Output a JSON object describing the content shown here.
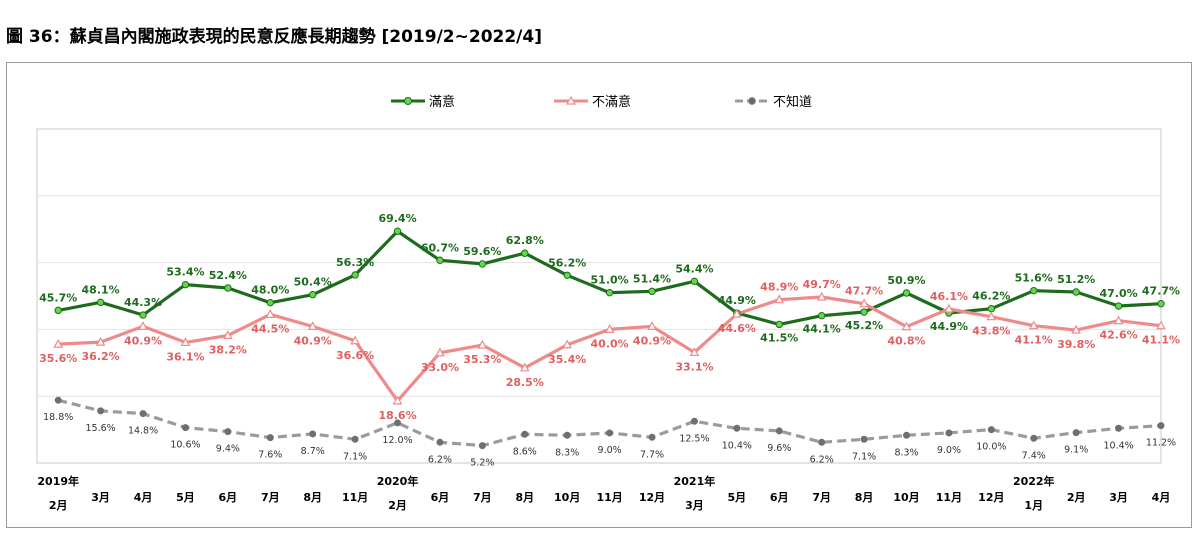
{
  "title": "圖 36：蘇貞昌內閣施政表現的民意反應長期趨勢 [2019/2~2022/4]",
  "colors": {
    "satisfied": "#1e6b1e",
    "satisfied_marker": "#62d84a",
    "dissatisfied": "#ee8a8a",
    "unknown": "#9b9b9b"
  },
  "chart_data": {
    "type": "line",
    "title": "圖 36：蘇貞昌內閣施政表現的民意反應長期趨勢 [2019/2~2022/4]",
    "xlabel": "",
    "ylabel": "",
    "ylim": [
      0,
      100
    ],
    "grid": true,
    "legend": "top",
    "categories": [
      "2019年 2月",
      "3月",
      "4月",
      "5月",
      "6月",
      "7月",
      "8月",
      "11月",
      "2020年 2月",
      "6月",
      "7月",
      "8月",
      "10月",
      "11月",
      "12月",
      "2021年 3月",
      "5月",
      "6月",
      "7月",
      "8月",
      "10月",
      "11月",
      "12月",
      "2022年 1月",
      "2月",
      "3月",
      "4月"
    ],
    "tick_labels": [
      [
        "2019年",
        "2月"
      ],
      [
        "3月"
      ],
      [
        "4月"
      ],
      [
        "5月"
      ],
      [
        "6月"
      ],
      [
        "7月"
      ],
      [
        "8月"
      ],
      [
        "11月"
      ],
      [
        "2020年",
        "2月"
      ],
      [
        "6月"
      ],
      [
        "7月"
      ],
      [
        "8月"
      ],
      [
        "10月"
      ],
      [
        "11月"
      ],
      [
        "12月"
      ],
      [
        "2021年",
        "3月"
      ],
      [
        "5月"
      ],
      [
        "6月"
      ],
      [
        "7月"
      ],
      [
        "8月"
      ],
      [
        "10月"
      ],
      [
        "11月"
      ],
      [
        "12月"
      ],
      [
        "2022年",
        "1月"
      ],
      [
        "2月"
      ],
      [
        "3月"
      ],
      [
        "4月"
      ]
    ],
    "series": [
      {
        "name": "滿意",
        "values": [
          45.7,
          48.1,
          44.3,
          53.4,
          52.4,
          48.0,
          50.4,
          56.3,
          69.4,
          60.7,
          59.6,
          62.8,
          56.2,
          51.0,
          51.4,
          54.4,
          44.9,
          41.5,
          44.1,
          45.2,
          50.9,
          44.9,
          46.2,
          51.6,
          51.2,
          47.0,
          47.7
        ]
      },
      {
        "name": "不滿意",
        "values": [
          35.6,
          36.2,
          40.9,
          36.1,
          38.2,
          44.5,
          40.9,
          36.6,
          18.6,
          33.0,
          35.3,
          28.5,
          35.4,
          40.0,
          40.9,
          33.1,
          44.6,
          48.9,
          49.7,
          47.7,
          40.8,
          46.1,
          43.8,
          41.1,
          39.8,
          42.6,
          41.1
        ]
      },
      {
        "name": "不知道",
        "values": [
          18.8,
          15.6,
          14.8,
          10.6,
          9.4,
          7.6,
          8.7,
          7.1,
          12.0,
          6.2,
          5.2,
          8.6,
          8.3,
          9.0,
          7.7,
          12.5,
          10.4,
          9.6,
          6.2,
          7.1,
          8.3,
          9.0,
          10.0,
          7.4,
          9.1,
          10.4,
          11.2
        ]
      }
    ],
    "data_labels": [
      [
        "45.7%",
        "48.1%",
        "44.3%",
        "53.4%",
        "52.4%",
        "48.0%",
        "50.4%",
        "56.3%",
        "69.4%",
        "60.7%",
        "59.6%",
        "62.8%",
        "56.2%",
        "51.0%",
        "51.4%",
        "54.4%",
        "44.9%",
        "41.5%",
        "44.1%",
        "45.2%",
        "50.9%",
        "44.9%",
        "46.2%",
        "51.6%",
        "51.2%",
        "47.0%",
        "47.7%"
      ],
      [
        "35.6%",
        "36.2%",
        "40.9%",
        "36.1%",
        "38.2%",
        "44.5%",
        "40.9%",
        "36.6%",
        "18.6%",
        "33.0%",
        "35.3%",
        "28.5%",
        "35.4%",
        "40.0%",
        "40.9%",
        "33.1%",
        "44.6%",
        "48.9%",
        "49.7%",
        "47.7%",
        "40.8%",
        "46.1%",
        "43.8%",
        "41.1%",
        "39.8%",
        "42.6%",
        "41.1%"
      ],
      [
        "18.8%",
        "15.6%",
        "14.8%",
        "10.6%",
        "9.4%",
        "7.6%",
        "8.7%",
        "7.1%",
        "12.0%",
        "6.2%",
        "5.2%",
        "8.6%",
        "8.3%",
        "9.0%",
        "7.7%",
        "12.5%",
        "10.4%",
        "9.6%",
        "6.2%",
        "7.1%",
        "8.3%",
        "9.0%",
        "10.0%",
        "7.4%",
        "9.1%",
        "10.4%",
        "11.2%"
      ]
    ]
  }
}
